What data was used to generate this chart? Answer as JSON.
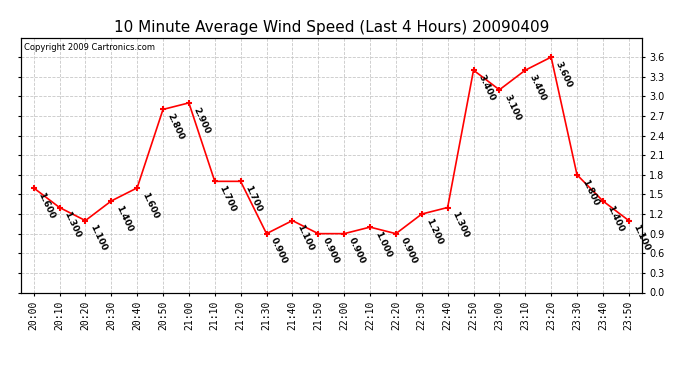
{
  "title": "10 Minute Average Wind Speed (Last 4 Hours) 20090409",
  "copyright": "Copyright 2009 Cartronics.com",
  "x_labels": [
    "20:00",
    "20:10",
    "20:20",
    "20:30",
    "20:40",
    "20:50",
    "21:00",
    "21:10",
    "21:20",
    "21:30",
    "21:40",
    "21:50",
    "22:00",
    "22:10",
    "22:20",
    "22:30",
    "22:40",
    "22:50",
    "23:00",
    "23:10",
    "23:20",
    "23:30",
    "23:40",
    "23:50"
  ],
  "y_values": [
    1.6,
    1.3,
    1.1,
    1.4,
    1.6,
    2.8,
    2.9,
    1.7,
    1.7,
    0.9,
    1.1,
    0.9,
    0.9,
    1.0,
    0.9,
    1.2,
    1.3,
    3.4,
    3.1,
    3.4,
    3.6,
    1.8,
    1.4,
    1.1
  ],
  "line_color": "#ff0000",
  "marker_color": "#ff0000",
  "bg_color": "#ffffff",
  "grid_color": "#c8c8c8",
  "ylim": [
    0.0,
    3.9
  ],
  "yticks": [
    0.0,
    0.3,
    0.6,
    0.9,
    1.2,
    1.5,
    1.8,
    2.1,
    2.4,
    2.7,
    3.0,
    3.3,
    3.6
  ],
  "title_fontsize": 11,
  "tick_fontsize": 7,
  "annotation_fontsize": 6.5
}
